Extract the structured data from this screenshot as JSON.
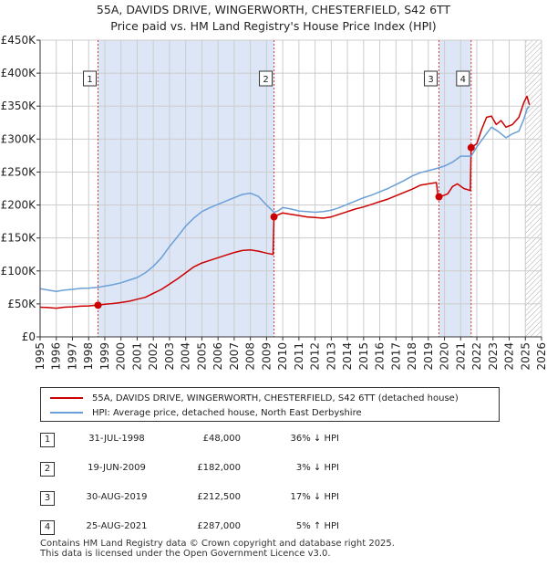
{
  "title_line1": "55A, DAVIDS DRIVE, WINGERWORTH, CHESTERFIELD, S42 6TT",
  "title_line2": "Price paid vs. HM Land Registry's House Price Index (HPI)",
  "colors": {
    "property_line": "#cc0000",
    "hpi_line": "#6a9fd8",
    "shade": "#dde6f7",
    "grid": "#cccccc",
    "marker_line": "#dd3333"
  },
  "chart_data": {
    "type": "line",
    "title": "Price paid vs. HM Land Registry's House Price Index (HPI)",
    "xlim": [
      1995,
      2026
    ],
    "ylim": [
      0,
      450000
    ],
    "x_ticks": [
      "1995",
      "1996",
      "1997",
      "1998",
      "1999",
      "2000",
      "2001",
      "2002",
      "2003",
      "2004",
      "2005",
      "2006",
      "2007",
      "2008",
      "2009",
      "2010",
      "2011",
      "2012",
      "2013",
      "2014",
      "2015",
      "2016",
      "2017",
      "2018",
      "2019",
      "2020",
      "2021",
      "2022",
      "2023",
      "2024",
      "2025",
      "2026"
    ],
    "y_ticks": [
      {
        "value": 0,
        "label": "£0"
      },
      {
        "value": 50000,
        "label": "£50K"
      },
      {
        "value": 100000,
        "label": "£100K"
      },
      {
        "value": 150000,
        "label": "£150K"
      },
      {
        "value": 200000,
        "label": "£200K"
      },
      {
        "value": 250000,
        "label": "£250K"
      },
      {
        "value": 300000,
        "label": "£300K"
      },
      {
        "value": 350000,
        "label": "£350K"
      },
      {
        "value": 400000,
        "label": "£400K"
      },
      {
        "value": 450000,
        "label": "£450K"
      }
    ],
    "series": [
      {
        "name": "55A, DAVIDS DRIVE, WINGERWORTH, CHESTERFIELD, S42 6TT (detached house)",
        "color": "#cc0000",
        "points": [
          [
            1995.0,
            45000
          ],
          [
            1995.5,
            44500
          ],
          [
            1996.0,
            43500
          ],
          [
            1996.5,
            45000
          ],
          [
            1997.0,
            45500
          ],
          [
            1997.5,
            46500
          ],
          [
            1998.0,
            47000
          ],
          [
            1998.58,
            48000
          ],
          [
            1999.0,
            49500
          ],
          [
            1999.5,
            50500
          ],
          [
            2000.0,
            52000
          ],
          [
            2000.5,
            54000
          ],
          [
            2001.0,
            57000
          ],
          [
            2001.5,
            60000
          ],
          [
            2002.0,
            66000
          ],
          [
            2002.5,
            72000
          ],
          [
            2003.0,
            80000
          ],
          [
            2003.5,
            88000
          ],
          [
            2004.0,
            97000
          ],
          [
            2004.5,
            106000
          ],
          [
            2005.0,
            112000
          ],
          [
            2005.5,
            116000
          ],
          [
            2006.0,
            120000
          ],
          [
            2006.5,
            124000
          ],
          [
            2007.0,
            128000
          ],
          [
            2007.5,
            131000
          ],
          [
            2008.0,
            132000
          ],
          [
            2008.5,
            130000
          ],
          [
            2009.0,
            127000
          ],
          [
            2009.4,
            125000
          ],
          [
            2009.46,
            182000
          ],
          [
            2009.7,
            185000
          ],
          [
            2010.0,
            188000
          ],
          [
            2010.5,
            186000
          ],
          [
            2011.0,
            184000
          ],
          [
            2011.5,
            182000
          ],
          [
            2012.0,
            181000
          ],
          [
            2012.5,
            180000
          ],
          [
            2013.0,
            182000
          ],
          [
            2013.5,
            186000
          ],
          [
            2014.0,
            190000
          ],
          [
            2014.5,
            194000
          ],
          [
            2015.0,
            197000
          ],
          [
            2015.5,
            201000
          ],
          [
            2016.0,
            205000
          ],
          [
            2016.5,
            209000
          ],
          [
            2017.0,
            214000
          ],
          [
            2017.5,
            219000
          ],
          [
            2018.0,
            224000
          ],
          [
            2018.5,
            230000
          ],
          [
            2019.0,
            232000
          ],
          [
            2019.5,
            234000
          ],
          [
            2019.6,
            212500
          ],
          [
            2019.9,
            214000
          ],
          [
            2020.2,
            217000
          ],
          [
            2020.5,
            228000
          ],
          [
            2020.8,
            232000
          ],
          [
            2021.2,
            225000
          ],
          [
            2021.6,
            222000
          ],
          [
            2021.65,
            287000
          ],
          [
            2022.0,
            293000
          ],
          [
            2022.3,
            315000
          ],
          [
            2022.6,
            333000
          ],
          [
            2022.9,
            335000
          ],
          [
            2023.2,
            322000
          ],
          [
            2023.5,
            328000
          ],
          [
            2023.8,
            318000
          ],
          [
            2024.2,
            322000
          ],
          [
            2024.6,
            333000
          ],
          [
            2024.9,
            355000
          ],
          [
            2025.1,
            365000
          ],
          [
            2025.25,
            352000
          ]
        ]
      },
      {
        "name": "HPI: Average price, detached house, North East Derbyshire",
        "color": "#6a9fd8",
        "points": [
          [
            1995.0,
            73000
          ],
          [
            1995.5,
            71000
          ],
          [
            1996.0,
            69000
          ],
          [
            1996.5,
            71000
          ],
          [
            1997.0,
            72000
          ],
          [
            1997.5,
            73500
          ],
          [
            1998.0,
            74000
          ],
          [
            1998.58,
            75000
          ],
          [
            1999.0,
            77000
          ],
          [
            1999.5,
            79000
          ],
          [
            2000.0,
            82000
          ],
          [
            2000.5,
            86000
          ],
          [
            2001.0,
            90000
          ],
          [
            2001.5,
            97000
          ],
          [
            2002.0,
            107000
          ],
          [
            2002.5,
            120000
          ],
          [
            2003.0,
            137000
          ],
          [
            2003.5,
            152000
          ],
          [
            2004.0,
            168000
          ],
          [
            2004.5,
            180000
          ],
          [
            2005.0,
            190000
          ],
          [
            2005.5,
            196000
          ],
          [
            2006.0,
            201000
          ],
          [
            2006.5,
            206000
          ],
          [
            2007.0,
            211000
          ],
          [
            2007.5,
            216000
          ],
          [
            2008.0,
            218000
          ],
          [
            2008.5,
            213000
          ],
          [
            2009.0,
            200000
          ],
          [
            2009.46,
            189000
          ],
          [
            2009.7,
            191000
          ],
          [
            2010.0,
            196000
          ],
          [
            2010.5,
            194000
          ],
          [
            2011.0,
            191000
          ],
          [
            2011.5,
            190000
          ],
          [
            2012.0,
            189000
          ],
          [
            2012.5,
            190000
          ],
          [
            2013.0,
            192000
          ],
          [
            2013.5,
            196000
          ],
          [
            2014.0,
            201000
          ],
          [
            2014.5,
            206000
          ],
          [
            2015.0,
            211000
          ],
          [
            2015.5,
            215000
          ],
          [
            2016.0,
            220000
          ],
          [
            2016.5,
            225000
          ],
          [
            2017.0,
            231000
          ],
          [
            2017.5,
            237000
          ],
          [
            2018.0,
            244000
          ],
          [
            2018.5,
            249000
          ],
          [
            2019.0,
            252000
          ],
          [
            2019.6,
            256000
          ],
          [
            2020.0,
            259000
          ],
          [
            2020.5,
            265000
          ],
          [
            2021.0,
            274000
          ],
          [
            2021.65,
            274000
          ],
          [
            2022.0,
            288000
          ],
          [
            2022.5,
            305000
          ],
          [
            2022.9,
            318000
          ],
          [
            2023.3,
            312000
          ],
          [
            2023.8,
            302000
          ],
          [
            2024.2,
            308000
          ],
          [
            2024.6,
            312000
          ],
          [
            2024.9,
            330000
          ],
          [
            2025.1,
            345000
          ],
          [
            2025.25,
            350000
          ]
        ]
      }
    ],
    "sales": [
      {
        "id": "1",
        "x": 1998.58,
        "price": 48000
      },
      {
        "id": "2",
        "x": 2009.46,
        "price": 182000
      },
      {
        "id": "3",
        "x": 2019.66,
        "price": 212500
      },
      {
        "id": "4",
        "x": 2021.65,
        "price": 287000
      }
    ],
    "shaded_spans": [
      [
        1998.58,
        2009.46
      ],
      [
        2019.66,
        2021.65
      ]
    ],
    "hatched_span": [
      2025.0,
      2026.0
    ]
  },
  "legend": {
    "property_label": "55A, DAVIDS DRIVE, WINGERWORTH, CHESTERFIELD, S42 6TT (detached house)",
    "hpi_label": "HPI: Average price, detached house, North East Derbyshire"
  },
  "sales_table": [
    {
      "num": "1",
      "date": "31-JUL-1998",
      "price": "£48,000",
      "hpi": "36% ↓ HPI"
    },
    {
      "num": "2",
      "date": "19-JUN-2009",
      "price": "£182,000",
      "hpi": "3% ↓ HPI"
    },
    {
      "num": "3",
      "date": "30-AUG-2019",
      "price": "£212,500",
      "hpi": "17% ↓ HPI"
    },
    {
      "num": "4",
      "date": "25-AUG-2021",
      "price": "£287,000",
      "hpi": "5% ↑ HPI"
    }
  ],
  "footer": {
    "line1": "Contains HM Land Registry data © Crown copyright and database right 2025.",
    "line2": "This data is licensed under the Open Government Licence v3.0."
  }
}
